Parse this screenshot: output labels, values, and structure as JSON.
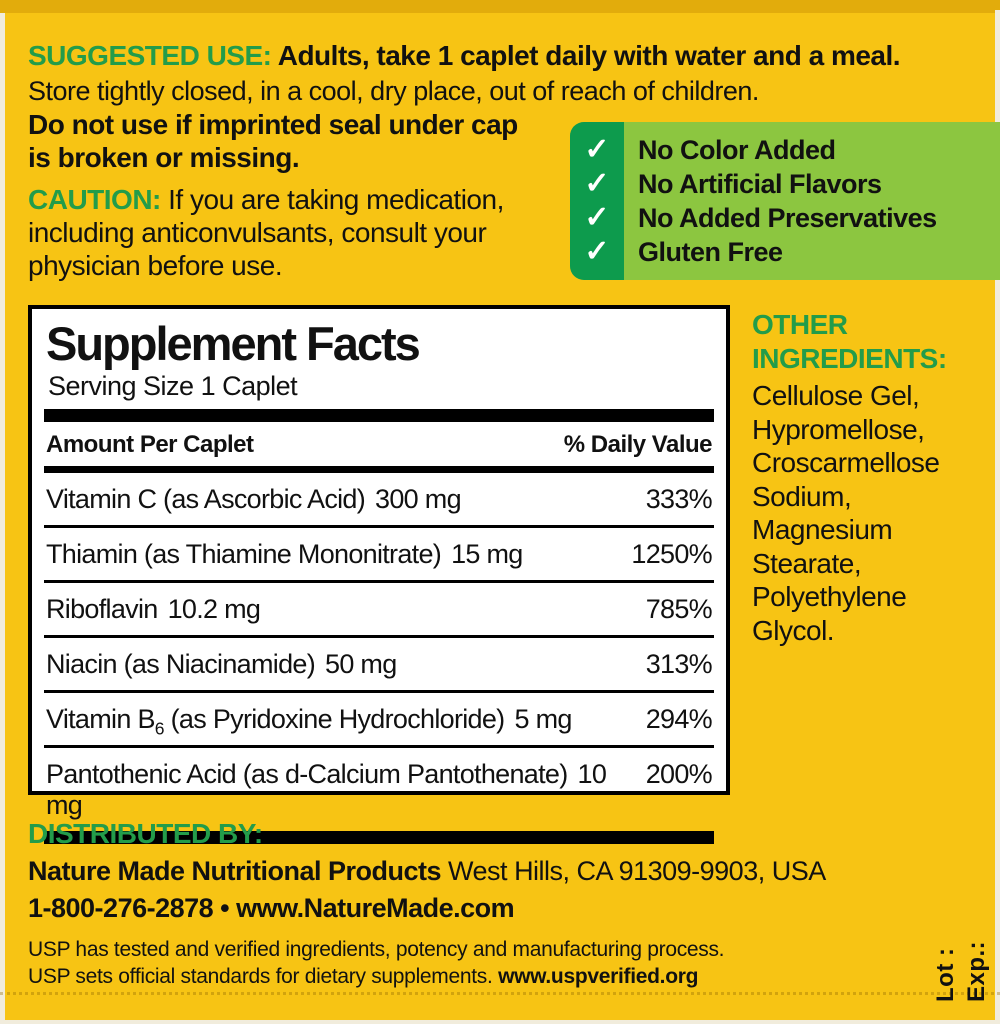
{
  "colors": {
    "bg": "#F7C414",
    "bg_dark": "#E2AC0C",
    "edge": "#F1ECDC",
    "green": "#239C4A",
    "check_dark": "#0D9B4D",
    "check_light": "#8CC640",
    "ink": "#111111"
  },
  "suggested_use": {
    "heading": "SUGGESTED USE:",
    "dose_text": "Adults, take 1 caplet daily with water and a meal.",
    "storage_text": "Store tightly closed, in a cool, dry place, out of reach of children.",
    "seal_warning": "Do not use if imprinted seal under cap is broken or missing."
  },
  "caution": {
    "heading": "CAUTION:",
    "text": "If you are taking medication, including anticonvulsants, consult your physician before use."
  },
  "checklist": {
    "check_glyph": "✓",
    "items": [
      "No Color Added",
      "No Artificial Flavors",
      "No Added Preservatives",
      "Gluten Free"
    ]
  },
  "supplement_facts": {
    "title": "Supplement Facts",
    "serving_size": "Serving Size 1 Caplet",
    "amount_header": "Amount Per Caplet",
    "dv_header": "% Daily Value",
    "rows": [
      {
        "name": "Vitamin C (as Ascorbic Acid)",
        "sub": "",
        "name_post": "",
        "amount": "300 mg",
        "dv": "333%"
      },
      {
        "name": "Thiamin (as Thiamine Mononitrate)",
        "sub": "",
        "name_post": "",
        "amount": "15 mg",
        "dv": "1250%"
      },
      {
        "name": "Riboflavin",
        "sub": "",
        "name_post": "",
        "amount": "10.2 mg",
        "dv": "785%"
      },
      {
        "name": "Niacin (as Niacinamide)",
        "sub": "",
        "name_post": "",
        "amount": "50 mg",
        "dv": "313%"
      },
      {
        "name": "Vitamin B",
        "sub": "6",
        "name_post": " (as Pyridoxine Hydrochloride)",
        "amount": "5 mg",
        "dv": "294%"
      },
      {
        "name": "Pantothenic Acid (as d-Calcium Pantothenate)",
        "sub": "",
        "name_post": "",
        "amount": "10 mg",
        "dv": "200%"
      }
    ]
  },
  "other_ingredients": {
    "heading": "OTHER INGREDIENTS:",
    "lines": [
      "Cellulose Gel,",
      "Hypromellose,",
      "Croscarmellose",
      "Sodium,",
      "Magnesium",
      "Stearate,",
      "Polyethylene",
      "Glycol."
    ]
  },
  "distributed_by": {
    "heading": "DISTRIBUTED BY:",
    "company": "Nature Made Nutritional Products",
    "address": " West Hills, CA 91309-9903, USA",
    "phone_web": "1-800-276-2878 • www.NatureMade.com"
  },
  "usp": {
    "line1": "USP has tested and verified ingredients, potency and manufacturing process.",
    "line2": "USP sets official standards for dietary supplements. ",
    "line2_bold": "www.uspverified.org"
  },
  "lot_exp": {
    "lot": "Lot :",
    "exp": "Exp.:"
  }
}
